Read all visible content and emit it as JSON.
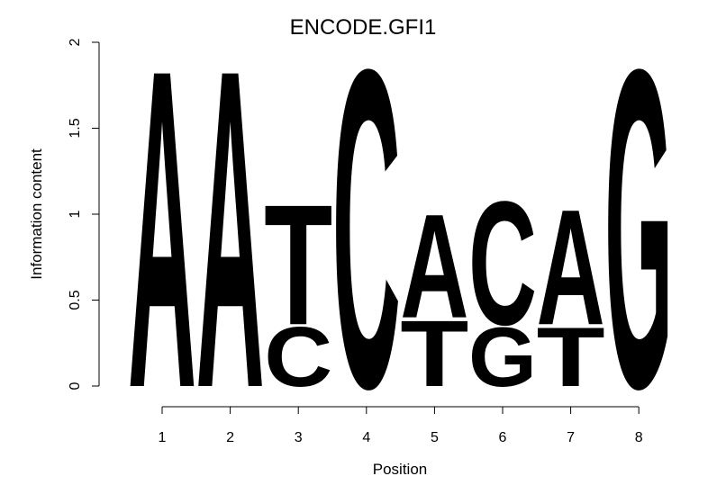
{
  "chart_data": {
    "type": "sequence-logo",
    "title": "ENCODE.GFI1",
    "xlabel": "Position",
    "ylabel": "Information content",
    "ylim": [
      0,
      2
    ],
    "y_ticks": [
      "0",
      "0.5",
      "1",
      "1.5",
      "2"
    ],
    "positions": [
      "1",
      "2",
      "3",
      "4",
      "5",
      "6",
      "7",
      "8"
    ],
    "colors": {
      "A": "#00ff00",
      "C": "#0000ff",
      "G": "#ffa500",
      "T": "#ff0000"
    },
    "stacks": [
      [
        {
          "letter": "A",
          "height": 1.93
        }
      ],
      [
        {
          "letter": "A",
          "height": 1.93
        }
      ],
      [
        {
          "letter": "C",
          "height": 0.36
        },
        {
          "letter": "T",
          "height": 0.73
        }
      ],
      [
        {
          "letter": "C",
          "height": 1.93
        }
      ],
      [
        {
          "letter": "T",
          "height": 0.4
        },
        {
          "letter": "A",
          "height": 0.63
        }
      ],
      [
        {
          "letter": "G",
          "height": 0.36
        },
        {
          "letter": "C",
          "height": 0.75
        }
      ],
      [
        {
          "letter": "T",
          "height": 0.36
        },
        {
          "letter": "A",
          "height": 0.7
        }
      ],
      [
        {
          "letter": "G",
          "height": 1.93
        }
      ]
    ]
  }
}
